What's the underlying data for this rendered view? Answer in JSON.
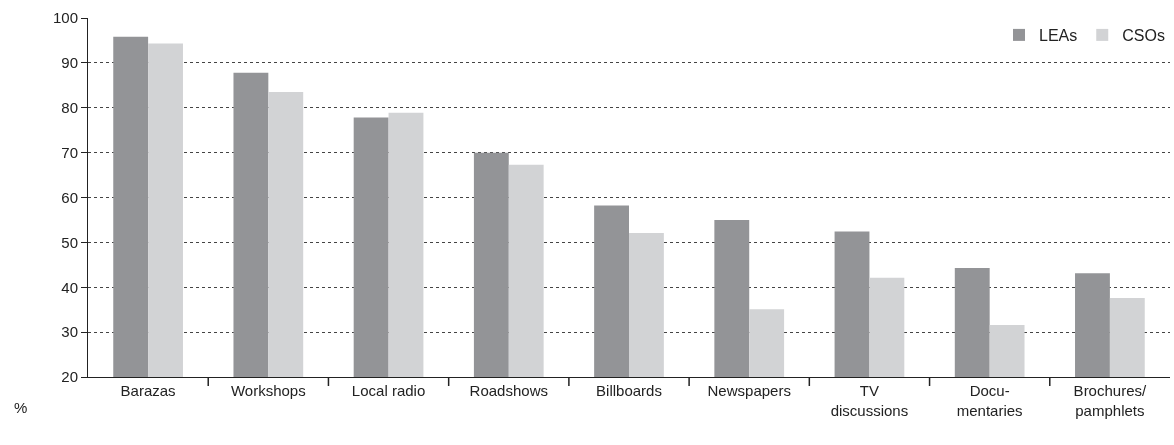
{
  "chart_data": {
    "type": "bar",
    "ylabel": "%",
    "categories": [
      "Barazas",
      "Workshops",
      "Local radio",
      "Roadshows",
      "Billboards",
      "Newspapers",
      "TV\ndiscussions",
      "Docu-\nmentaries",
      "Brochures/\npamphlets"
    ],
    "series": [
      {
        "name": "LEAs",
        "color": "#939497",
        "values": [
          95.8,
          87.8,
          77.8,
          70,
          58.2,
          55,
          52.4,
          44.3,
          43.1
        ]
      },
      {
        "name": "CSOs",
        "color": "#d2d3d5",
        "values": [
          94.3,
          83.5,
          78.9,
          67.3,
          52.1,
          35.1,
          42.1,
          31.6,
          37.6
        ]
      }
    ],
    "ylim": [
      20,
      100
    ],
    "yticks": [
      20,
      30,
      40,
      50,
      60,
      70,
      80,
      90,
      100
    ],
    "grid": "y",
    "legend": "top right"
  }
}
